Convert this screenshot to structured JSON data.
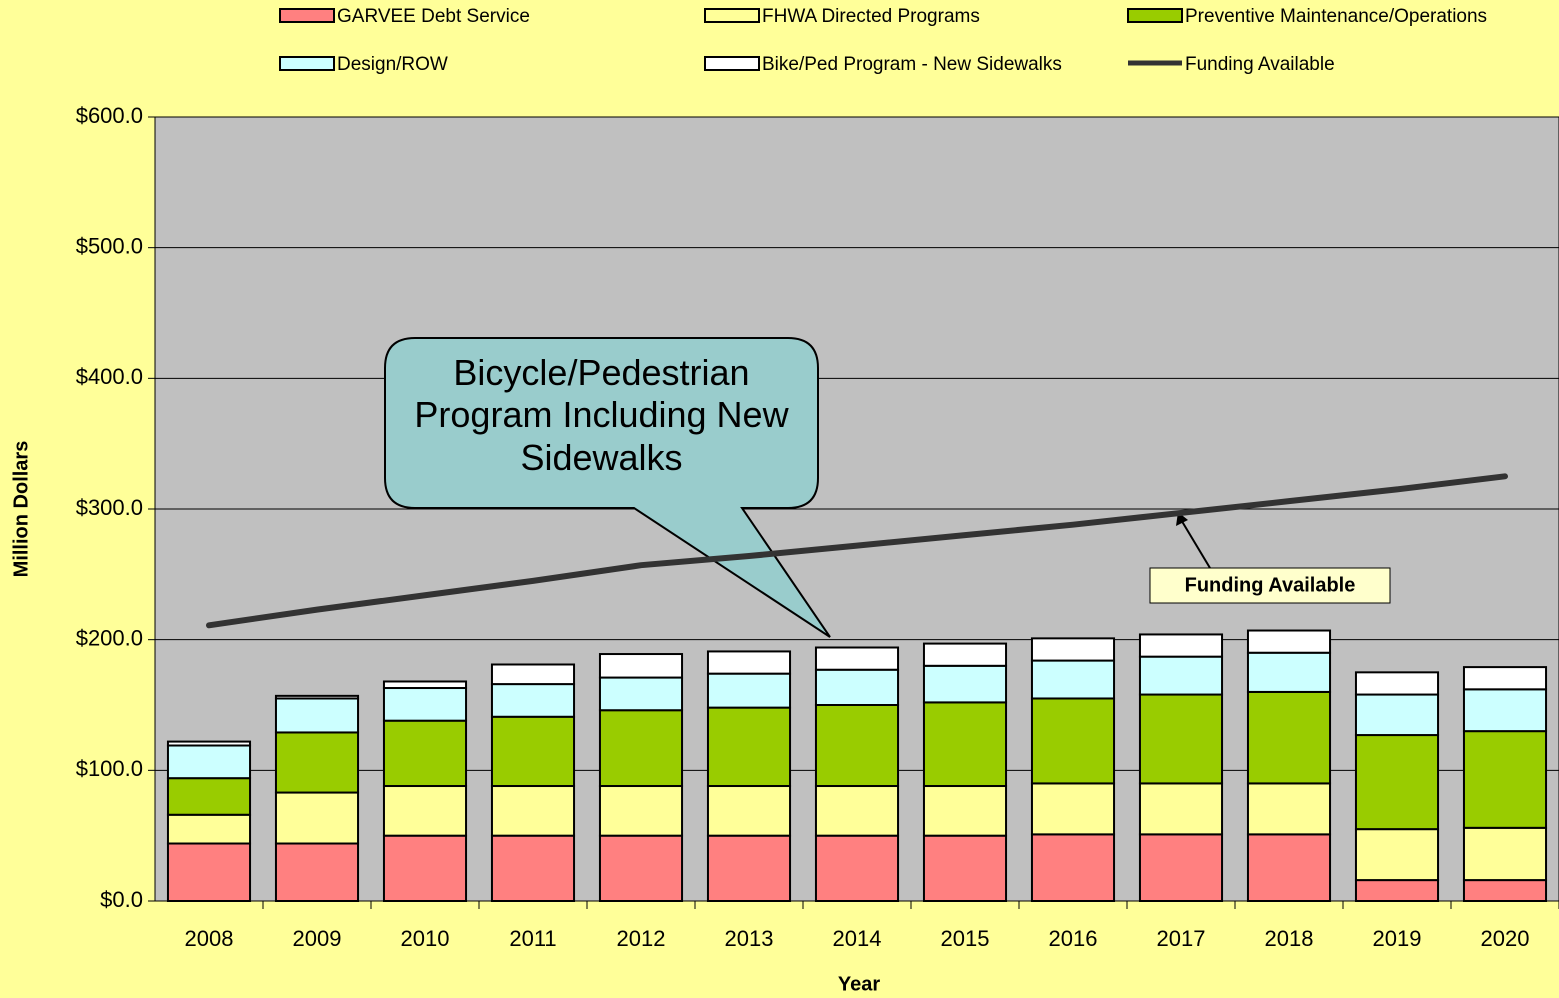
{
  "chart_data": {
    "type": "bar",
    "categories": [
      "2008",
      "2009",
      "2010",
      "2011",
      "2012",
      "2013",
      "2014",
      "2015",
      "2016",
      "2017",
      "2018",
      "2019",
      "2020"
    ],
    "series": [
      {
        "name": "GARVEE Debt Service",
        "color": "#ff8080",
        "values": [
          44,
          44,
          50,
          50,
          50,
          50,
          50,
          50,
          51,
          51,
          51,
          16,
          16
        ]
      },
      {
        "name": "FHWA Directed Programs",
        "color": "#ffff99",
        "values": [
          22,
          39,
          38,
          38,
          38,
          38,
          38,
          38,
          39,
          39,
          39,
          39,
          40
        ]
      },
      {
        "name": "Preventive Maintenance/Operations",
        "color": "#99cc00",
        "values": [
          28,
          46,
          50,
          53,
          58,
          60,
          62,
          64,
          65,
          68,
          70,
          72,
          74
        ]
      },
      {
        "name": "Design/ROW",
        "color": "#ccffff",
        "values": [
          25,
          26,
          25,
          25,
          25,
          26,
          27,
          28,
          29,
          29,
          30,
          31,
          32
        ]
      },
      {
        "name": "Bike/Ped Program - New Sidewalks",
        "color": "#ffffff",
        "values": [
          3,
          2,
          5,
          15,
          18,
          17,
          17,
          17,
          17,
          17,
          17,
          17,
          17
        ]
      },
      {
        "name": "Funding Available",
        "type": "line",
        "color": "#333333",
        "values": [
          211,
          223,
          234,
          245,
          257,
          264,
          272,
          280,
          288,
          297,
          306,
          315,
          325
        ]
      }
    ],
    "ylim": [
      0,
      600
    ],
    "yticks": [
      {
        "value": 0,
        "label": "$0.0"
      },
      {
        "value": 100,
        "label": "$100.0"
      },
      {
        "value": 200,
        "label": "$200.0"
      },
      {
        "value": 300,
        "label": "$300.0"
      },
      {
        "value": 400,
        "label": "$400.0"
      },
      {
        "value": 500,
        "label": "$500.0"
      },
      {
        "value": 600,
        "label": "$600.0"
      }
    ],
    "grid": true,
    "ylabel": "Million Dollars",
    "xlabel": "Year",
    "annotations": [
      {
        "text": "Bicycle/Pedestrian Program Including New Sidewalks"
      },
      {
        "text": "Funding Available"
      }
    ]
  }
}
